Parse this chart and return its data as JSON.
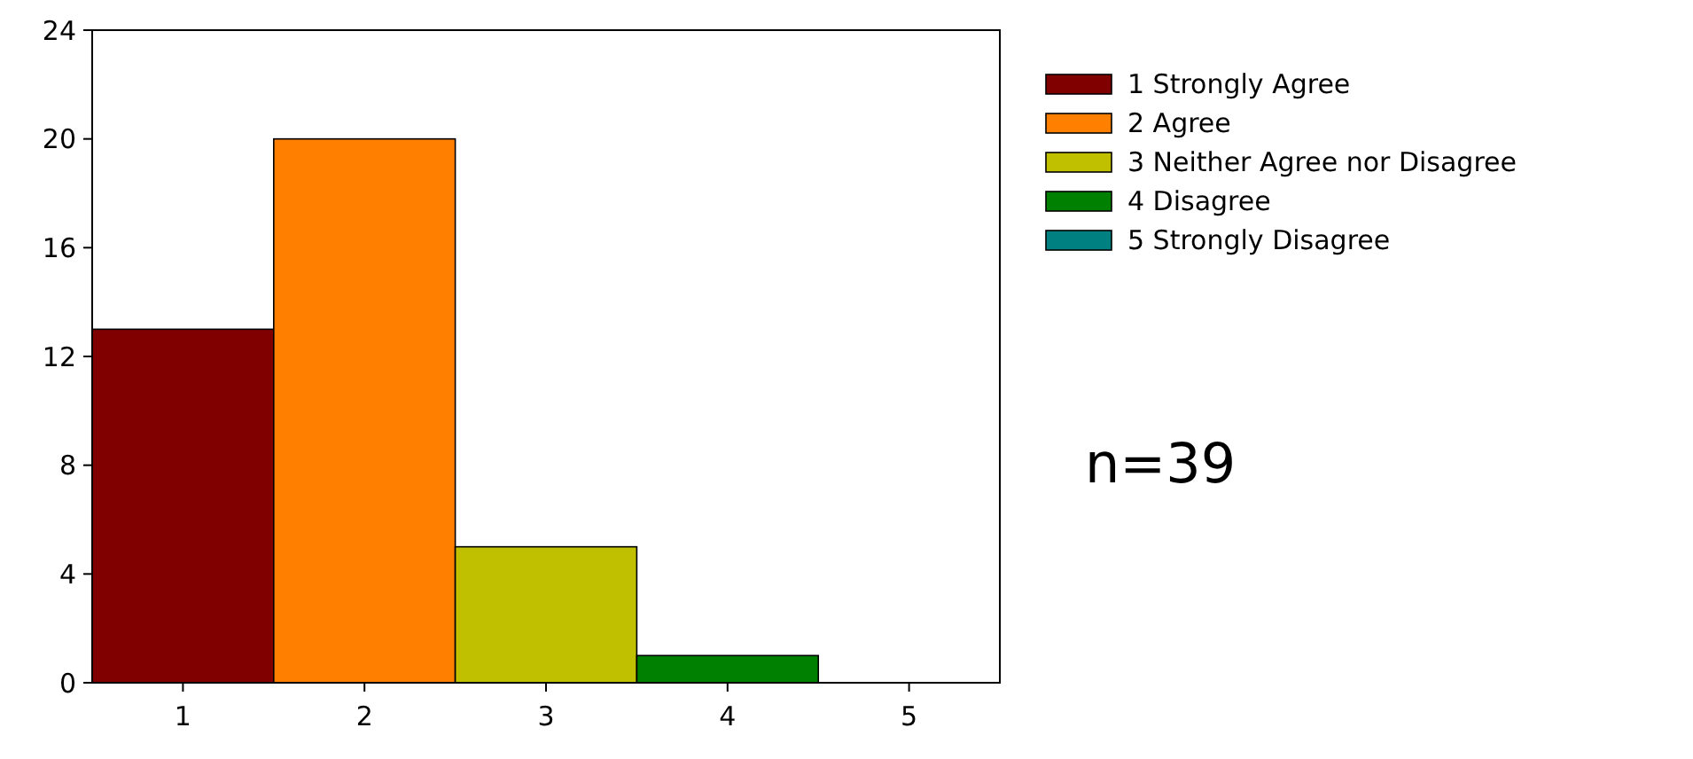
{
  "chart_data": {
    "type": "bar",
    "categories": [
      "1",
      "2",
      "3",
      "4",
      "5"
    ],
    "series": [
      {
        "name": "1 Strongly Agree",
        "color": "#800000",
        "values": [
          13,
          null,
          null,
          null,
          null
        ]
      },
      {
        "name": "2 Agree",
        "color": "#ff8000",
        "values": [
          null,
          20,
          null,
          null,
          null
        ]
      },
      {
        "name": "3 Neither Agree nor Disagree",
        "color": "#c0c000",
        "values": [
          null,
          null,
          5,
          null,
          null
        ]
      },
      {
        "name": "4 Disagree",
        "color": "#008000",
        "values": [
          null,
          null,
          null,
          1,
          null
        ]
      },
      {
        "name": "5 Strongly Disagree",
        "color": "#008080",
        "values": [
          null,
          null,
          null,
          null,
          0
        ]
      }
    ],
    "ylim": [
      0,
      24
    ],
    "yticks": [
      0,
      4,
      8,
      12,
      16,
      20,
      24
    ],
    "grid": false,
    "legend": "right",
    "annotations": [
      "n=39"
    ]
  }
}
